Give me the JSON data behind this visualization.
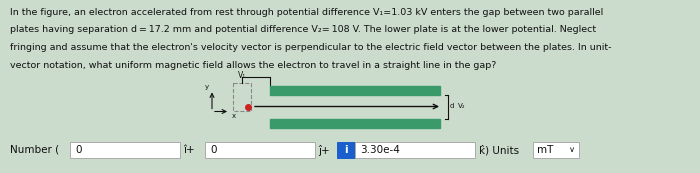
{
  "bg_color": "#ccdccc",
  "text_color": "#111111",
  "description_lines": [
    "In the figure, an electron accelerated from rest through potential difference V₁=1.03 kV enters the gap between two parallel",
    "plates having separation d = 17.2 mm and potential difference V₂= 108 V. The lower plate is at the lower potential. Neglect",
    "fringing and assume that the electron's velocity vector is perpendicular to the electric field vector between the plates. In unit-",
    "vector notation, what uniform magnetic field allows the electron to travel in a straight line in the gap?"
  ],
  "plate_color": "#3a9a6a",
  "arrow_color": "#111111",
  "dot_color": "#cc2222",
  "dashed_color": "#888888",
  "highlight_color": "#1a5fcc",
  "highlight_text_color": "#ffffff",
  "input_bg": "#ffffff",
  "input_border": "#aaaaaa",
  "number_label": "Number (",
  "field1_value": "0",
  "ihat_label": "î+",
  "field2_value": "0",
  "jhat_label": "ĵ+",
  "i_button_label": "i",
  "field3_value": "3.30e-4",
  "khat_label": "k̂) Units",
  "units_value": "mT",
  "v1_label": "V₁",
  "v2_label": "V₂",
  "d_label": "d",
  "y_label": "y",
  "x_label": "x"
}
